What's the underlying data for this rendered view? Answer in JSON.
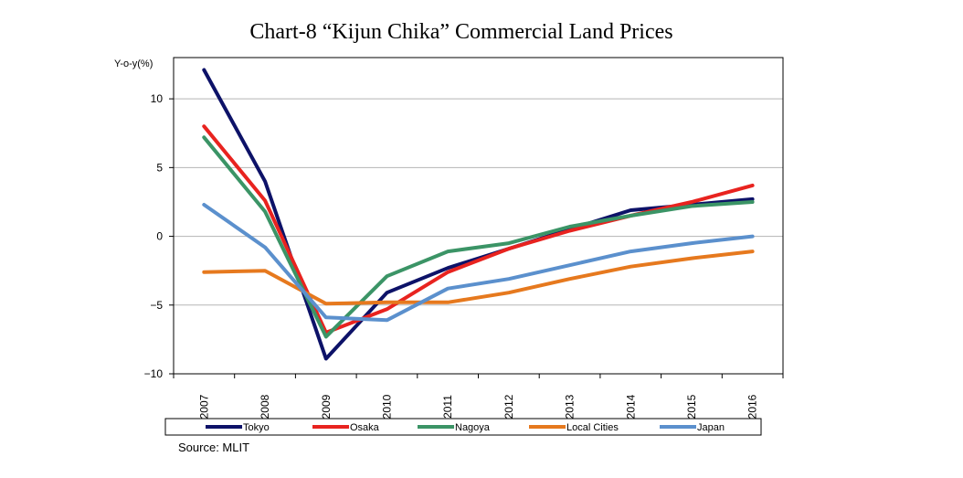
{
  "chart_data": {
    "type": "line",
    "title": "Chart-8 “Kijun Chika” Commercial Land Prices",
    "ylabel": "Y-o-y(%)",
    "xlabel": "",
    "source": "Source: MLIT",
    "ylim": [
      -10,
      13
    ],
    "yticks": [
      -10,
      -5,
      0,
      5,
      10
    ],
    "ytick_labels": [
      "−10",
      "−5",
      "0",
      "5",
      "10"
    ],
    "grid": true,
    "legend_position": "bottom",
    "categories": [
      "2007",
      "2008",
      "2009",
      "2010",
      "2011",
      "2012",
      "2013",
      "2014",
      "2015",
      "2016"
    ],
    "series": [
      {
        "name": "Tokyo",
        "color": "#0d1268",
        "values": [
          12.1,
          4.0,
          -8.9,
          -4.1,
          -2.3,
          -0.9,
          0.5,
          1.9,
          2.3,
          2.7
        ]
      },
      {
        "name": "Osaka",
        "color": "#e8231f",
        "values": [
          8.0,
          2.6,
          -7.0,
          -5.3,
          -2.6,
          -0.9,
          0.4,
          1.5,
          2.5,
          3.7
        ]
      },
      {
        "name": "Nagoya",
        "color": "#3b9466",
        "values": [
          7.2,
          1.8,
          -7.3,
          -2.9,
          -1.1,
          -0.5,
          0.7,
          1.5,
          2.2,
          2.5
        ]
      },
      {
        "name": "Local Cities",
        "color": "#e6791e",
        "values": [
          -2.6,
          -2.5,
          -4.9,
          -4.8,
          -4.8,
          -4.1,
          -3.1,
          -2.2,
          -1.6,
          -1.1
        ]
      },
      {
        "name": "Japan",
        "color": "#5b90cd",
        "values": [
          2.3,
          -0.8,
          -5.9,
          -6.1,
          -3.8,
          -3.1,
          -2.1,
          -1.1,
          -0.5,
          0.0
        ]
      }
    ]
  }
}
